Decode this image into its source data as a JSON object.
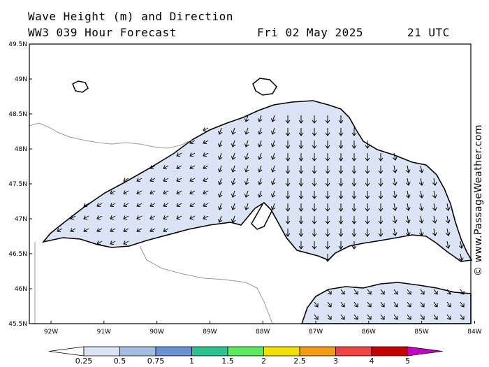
{
  "header": {
    "title": "Wave Height (m) and Direction",
    "forecast": "WW3 039 Hour Forecast",
    "date": "Fri 02 May 2025",
    "time": "21 UTC"
  },
  "credit": "© www.PassageWeather.com",
  "map": {
    "lat_ticks": [
      "49.5N",
      "49N",
      "48.5N",
      "48N",
      "47.5N",
      "47N",
      "46.5N",
      "46N",
      "45.5N"
    ],
    "lon_ticks": [
      "92W",
      "91W",
      "90W",
      "89W",
      "88W",
      "87W",
      "86W",
      "85W",
      "84W"
    ],
    "land_color": "#ffffff",
    "border_color": "#999999"
  },
  "legend": {
    "labels": [
      "0.25",
      "0.5",
      "0.75",
      "1",
      "1.5",
      "2",
      "2.5",
      "3",
      "4",
      "5"
    ],
    "colors": [
      "#ffffff",
      "#dbe4f4",
      "#a5bde0",
      "#6b93d2",
      "#2fc290",
      "#5ee85e",
      "#f4e000",
      "#f49c14",
      "#ee4444",
      "#c40000",
      "#c400c4"
    ]
  },
  "wave_colors": {
    "c025": "#dbe4f4",
    "c05": "#a5bde0",
    "c075": "#6b93d2",
    "c1": "#2fc290"
  }
}
